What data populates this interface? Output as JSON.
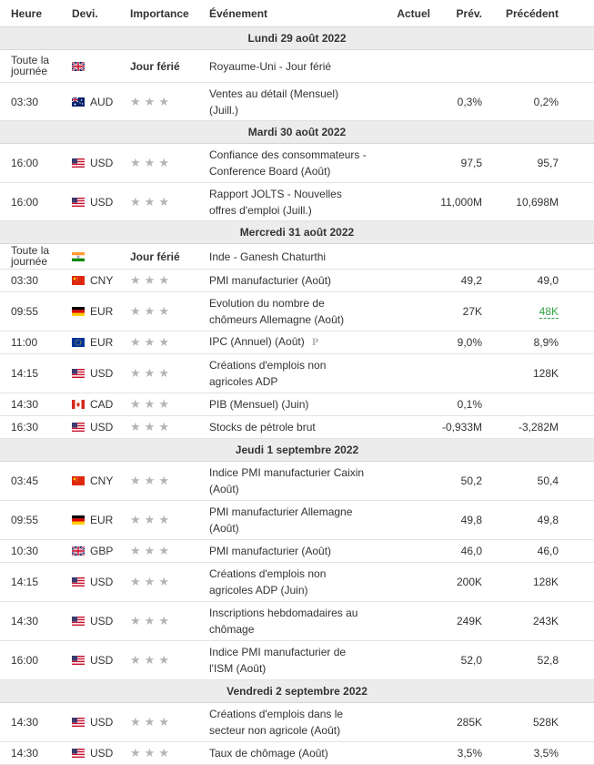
{
  "header": {
    "time": "Heure",
    "currency": "Devi.",
    "importance": "Importance",
    "event": "Événement",
    "actual": "Actuel",
    "forecast": "Prév.",
    "previous": "Précédent"
  },
  "all_day_line1": "Toute la",
  "all_day_line2": "journée",
  "holiday_label": "Jour férié",
  "star_glyph": "★",
  "colors": {
    "good": "#33a245",
    "star": "#b4b4b4"
  },
  "days": [
    {
      "date": "Lundi 29 août 2022"
    },
    {
      "date": "Mardi 30 août 2022"
    },
    {
      "date": "Mercredi 31 août 2022"
    },
    {
      "date": "Jeudi 1 septembre 2022"
    },
    {
      "date": "Vendredi 2 septembre 2022"
    }
  ],
  "events": [
    {
      "time": "",
      "flag": "uk-flag-icon",
      "currency": "",
      "event_line1": "Royaume-Uni - Jour férié",
      "event_line2": "",
      "actual": "",
      "forecast": "",
      "previous": ""
    },
    {
      "time": "03:30",
      "flag": "australia-flag-icon",
      "currency": "AUD",
      "event_line1": "Ventes au détail (Mensuel)",
      "event_line2": "(Juill.)",
      "actual": "",
      "forecast": "0,3%",
      "previous": "0,2%"
    },
    {
      "time": "16:00",
      "flag": "us-flag-icon",
      "currency": "USD",
      "event_line1": "Confiance des consommateurs -",
      "event_line2": "Conference Board (Août)",
      "actual": "",
      "forecast": "97,5",
      "previous": "95,7"
    },
    {
      "time": "16:00",
      "flag": "us-flag-icon",
      "currency": "USD",
      "event_line1": "Rapport JOLTS - Nouvelles",
      "event_line2": "offres d'emploi (Juill.)",
      "actual": "",
      "forecast": "11,000M",
      "previous": "10,698M"
    },
    {
      "time": "",
      "flag": "india-flag-icon",
      "currency": "",
      "event_line1": "Inde - Ganesh Chaturthi",
      "event_line2": "",
      "actual": "",
      "forecast": "",
      "previous": ""
    },
    {
      "time": "03:30",
      "flag": "china-flag-icon",
      "currency": "CNY",
      "event_line1": "PMI manufacturier (Août)",
      "event_line2": "",
      "actual": "",
      "forecast": "49,2",
      "previous": "49,0"
    },
    {
      "time": "09:55",
      "flag": "germany-flag-icon",
      "currency": "EUR",
      "event_line1": "Evolution du nombre de",
      "event_line2": "chômeurs Allemagne (Août)",
      "actual": "",
      "forecast": "27K",
      "previous": "48K"
    },
    {
      "time": "11:00",
      "flag": "eu-flag-icon",
      "currency": "EUR",
      "event_line1": "IPC (Annuel) (Août)",
      "event_line2": "",
      "actual": "",
      "forecast": "9,0%",
      "previous": "8,9%"
    },
    {
      "time": "14:15",
      "flag": "us-flag-icon",
      "currency": "USD",
      "event_line1": "Créations d'emplois non",
      "event_line2": "agricoles ADP",
      "actual": "",
      "forecast": "",
      "previous": "128K"
    },
    {
      "time": "14:30",
      "flag": "canada-flag-icon",
      "currency": "CAD",
      "event_line1": "PIB (Mensuel) (Juin)",
      "event_line2": "",
      "actual": "",
      "forecast": "0,1%",
      "previous": ""
    },
    {
      "time": "16:30",
      "flag": "us-flag-icon",
      "currency": "USD",
      "event_line1": "Stocks de pétrole brut",
      "event_line2": "",
      "actual": "",
      "forecast": "-0,933M",
      "previous": "-3,282M"
    },
    {
      "time": "03:45",
      "flag": "china-flag-icon",
      "currency": "CNY",
      "event_line1": "Indice PMI manufacturier Caixin",
      "event_line2": "(Août)",
      "actual": "",
      "forecast": "50,2",
      "previous": "50,4"
    },
    {
      "time": "09:55",
      "flag": "germany-flag-icon",
      "currency": "EUR",
      "event_line1": "PMI manufacturier Allemagne",
      "event_line2": "(Août)",
      "actual": "",
      "forecast": "49,8",
      "previous": "49,8"
    },
    {
      "time": "10:30",
      "flag": "uk-flag-icon",
      "currency": "GBP",
      "event_line1": "PMI manufacturier (Août)",
      "event_line2": "",
      "actual": "",
      "forecast": "46,0",
      "previous": "46,0"
    },
    {
      "time": "14:15",
      "flag": "us-flag-icon",
      "currency": "USD",
      "event_line1": "Créations d'emplois non",
      "event_line2": "agricoles ADP (Juin)",
      "actual": "",
      "forecast": "200K",
      "previous": "128K"
    },
    {
      "time": "14:30",
      "flag": "us-flag-icon",
      "currency": "USD",
      "event_line1": "Inscriptions hebdomadaires au",
      "event_line2": "chômage",
      "actual": "",
      "forecast": "249K",
      "previous": "243K"
    },
    {
      "time": "16:00",
      "flag": "us-flag-icon",
      "currency": "USD",
      "event_line1": "Indice PMI manufacturier de",
      "event_line2": "l'ISM (Août)",
      "actual": "",
      "forecast": "52,0",
      "previous": "52,8"
    },
    {
      "time": "14:30",
      "flag": "us-flag-icon",
      "currency": "USD",
      "event_line1": "Créations d'emplois dans le",
      "event_line2": "secteur non agricole (Août)",
      "actual": "",
      "forecast": "285K",
      "previous": "528K"
    },
    {
      "time": "14:30",
      "flag": "us-flag-icon",
      "currency": "USD",
      "event_line1": "Taux de chômage (Août)",
      "event_line2": "",
      "actual": "",
      "forecast": "3,5%",
      "previous": "3,5%"
    }
  ]
}
